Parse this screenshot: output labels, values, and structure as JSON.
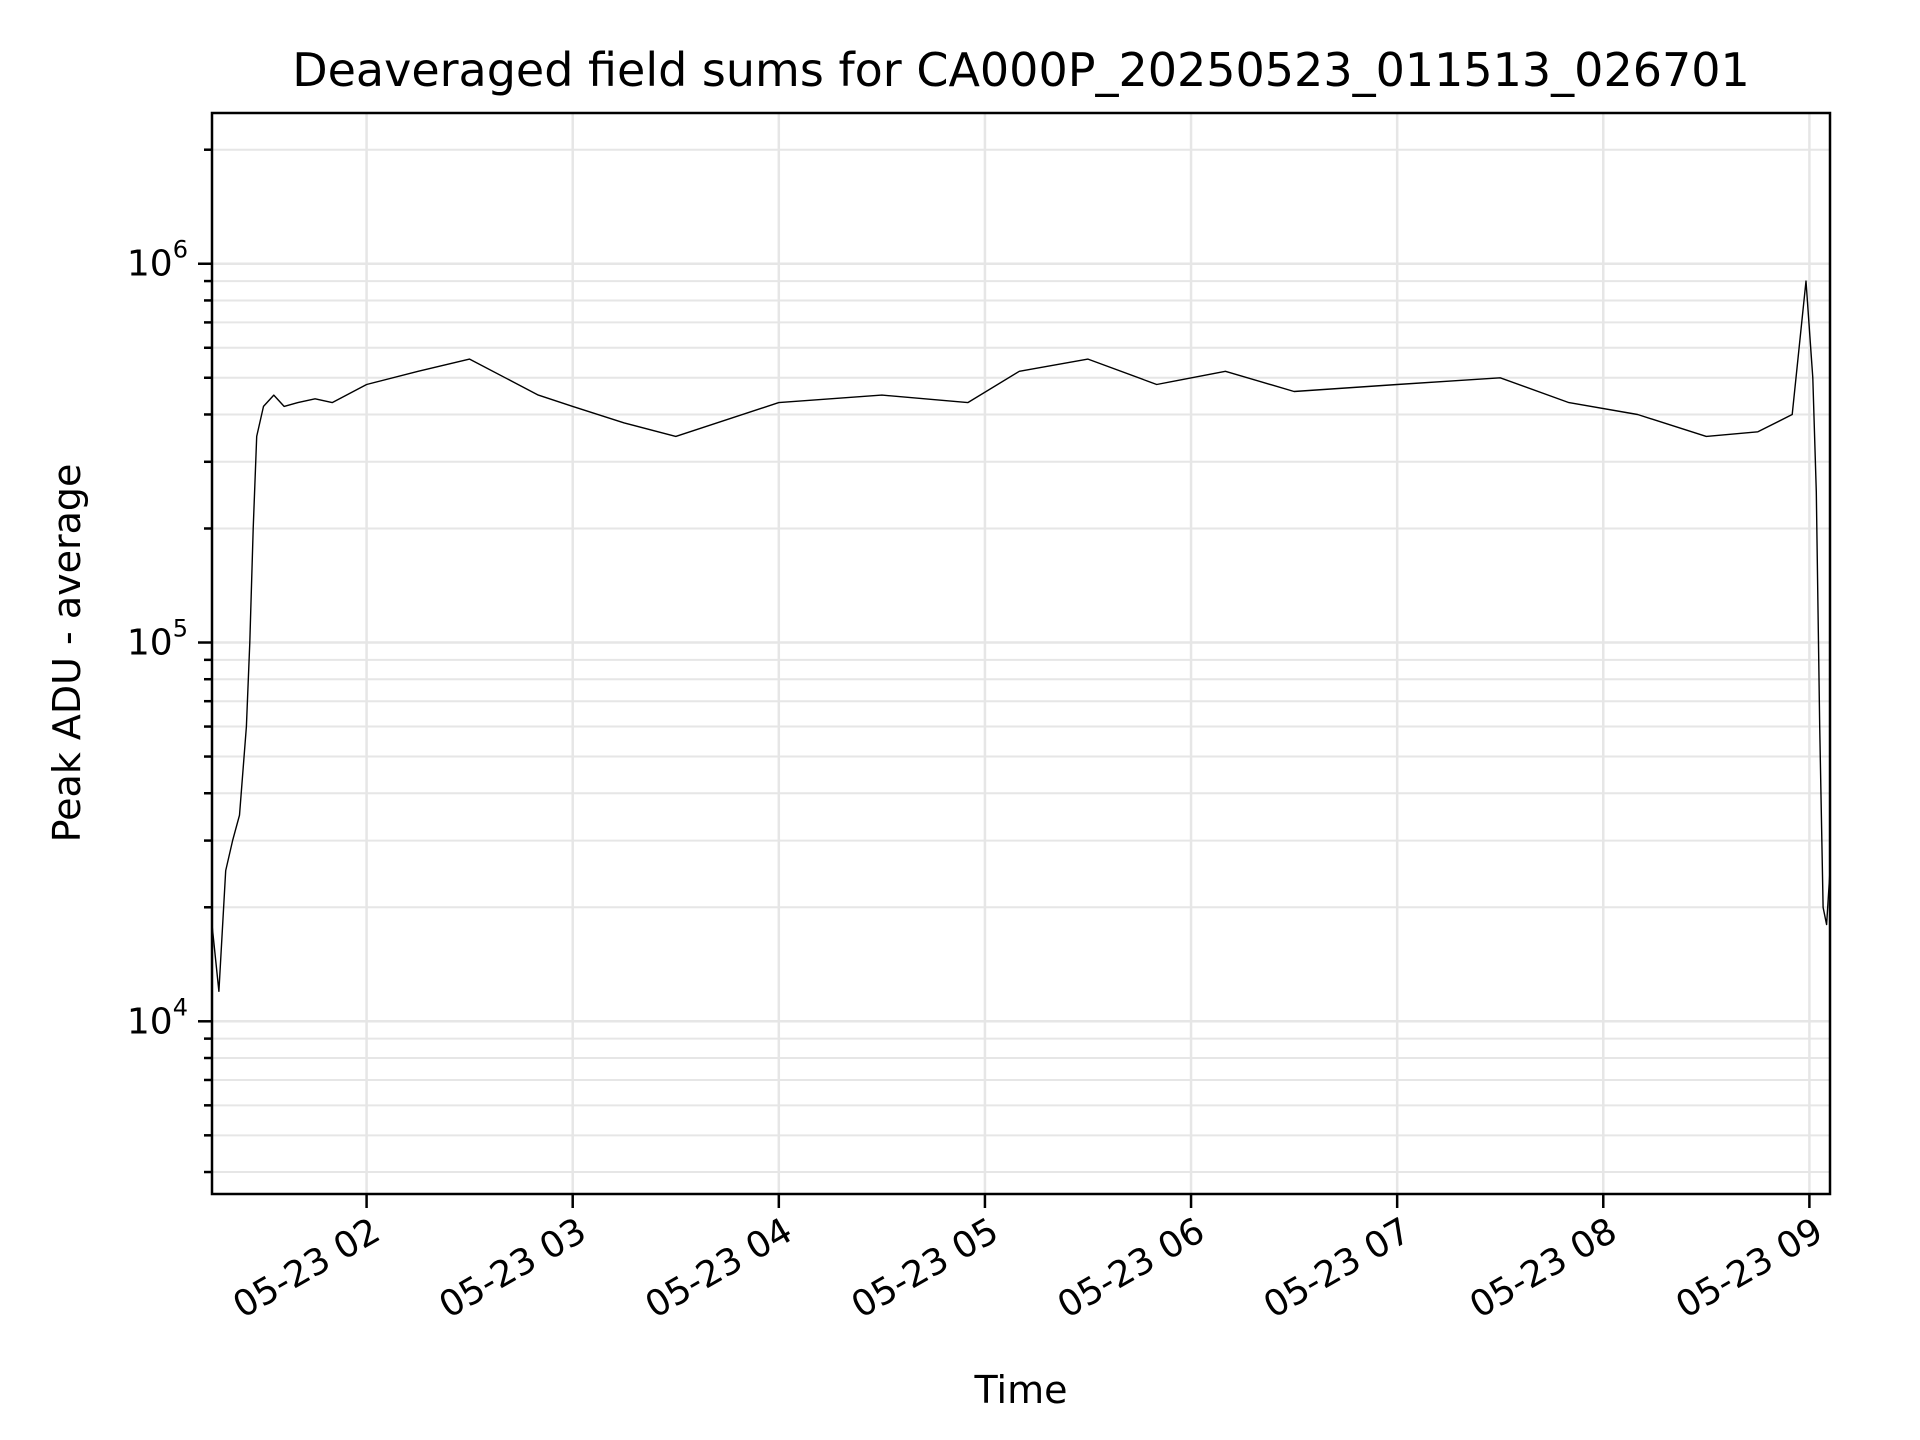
{
  "chart_data": {
    "type": "line",
    "title": "Deaveraged field sums for CA000P_20250523_011513_026701",
    "xlabel": "Time",
    "ylabel": "Peak ADU - average",
    "yscale": "log",
    "ylim": [
      3500,
      2500000
    ],
    "xlim": [
      "2025-05-23 01:15",
      "2025-05-23 09:06"
    ],
    "x_ticks": [
      {
        "label": "05-23 02",
        "time": "2025-05-23 02:00"
      },
      {
        "label": "05-23 03",
        "time": "2025-05-23 03:00"
      },
      {
        "label": "05-23 04",
        "time": "2025-05-23 04:00"
      },
      {
        "label": "05-23 05",
        "time": "2025-05-23 05:00"
      },
      {
        "label": "05-23 06",
        "time": "2025-05-23 06:00"
      },
      {
        "label": "05-23 07",
        "time": "2025-05-23 07:00"
      },
      {
        "label": "05-23 08",
        "time": "2025-05-23 08:00"
      },
      {
        "label": "05-23 09",
        "time": "2025-05-23 09:00"
      }
    ],
    "y_ticks": [
      {
        "base": "10",
        "exp": "4",
        "value": 10000
      },
      {
        "base": "10",
        "exp": "5",
        "value": 100000
      },
      {
        "base": "10",
        "exp": "6",
        "value": 1000000
      }
    ],
    "grid": true,
    "line_color": "#000000",
    "series": [
      {
        "x": [
          "2025-05-23 01:15",
          "2025-05-23 01:17",
          "2025-05-23 01:19",
          "2025-05-23 01:21",
          "2025-05-23 01:23",
          "2025-05-23 01:25",
          "2025-05-23 01:26",
          "2025-05-23 01:27",
          "2025-05-23 01:28",
          "2025-05-23 01:30",
          "2025-05-23 01:33",
          "2025-05-23 01:36",
          "2025-05-23 01:40",
          "2025-05-23 01:45",
          "2025-05-23 01:50",
          "2025-05-23 02:00",
          "2025-05-23 02:15",
          "2025-05-23 02:30",
          "2025-05-23 02:50",
          "2025-05-23 03:00",
          "2025-05-23 03:15",
          "2025-05-23 03:30",
          "2025-05-23 04:00",
          "2025-05-23 04:30",
          "2025-05-23 04:55",
          "2025-05-23 05:10",
          "2025-05-23 05:30",
          "2025-05-23 05:50",
          "2025-05-23 06:10",
          "2025-05-23 06:30",
          "2025-05-23 07:00",
          "2025-05-23 07:30",
          "2025-05-23 07:50",
          "2025-05-23 08:10",
          "2025-05-23 08:30",
          "2025-05-23 08:45",
          "2025-05-23 08:55",
          "2025-05-23 08:59",
          "2025-05-23 09:01",
          "2025-05-23 09:02",
          "2025-05-23 09:03",
          "2025-05-23 09:04",
          "2025-05-23 09:05",
          "2025-05-23 09:06"
        ],
        "y": [
          18000,
          12000,
          25000,
          30000,
          35000,
          60000,
          100000,
          200000,
          350000,
          420000,
          450000,
          420000,
          430000,
          440000,
          430000,
          480000,
          520000,
          560000,
          450000,
          420000,
          380000,
          350000,
          430000,
          450000,
          430000,
          520000,
          560000,
          480000,
          520000,
          460000,
          480000,
          500000,
          430000,
          400000,
          350000,
          360000,
          400000,
          900000,
          500000,
          250000,
          60000,
          20000,
          18000,
          25000
        ]
      }
    ]
  }
}
